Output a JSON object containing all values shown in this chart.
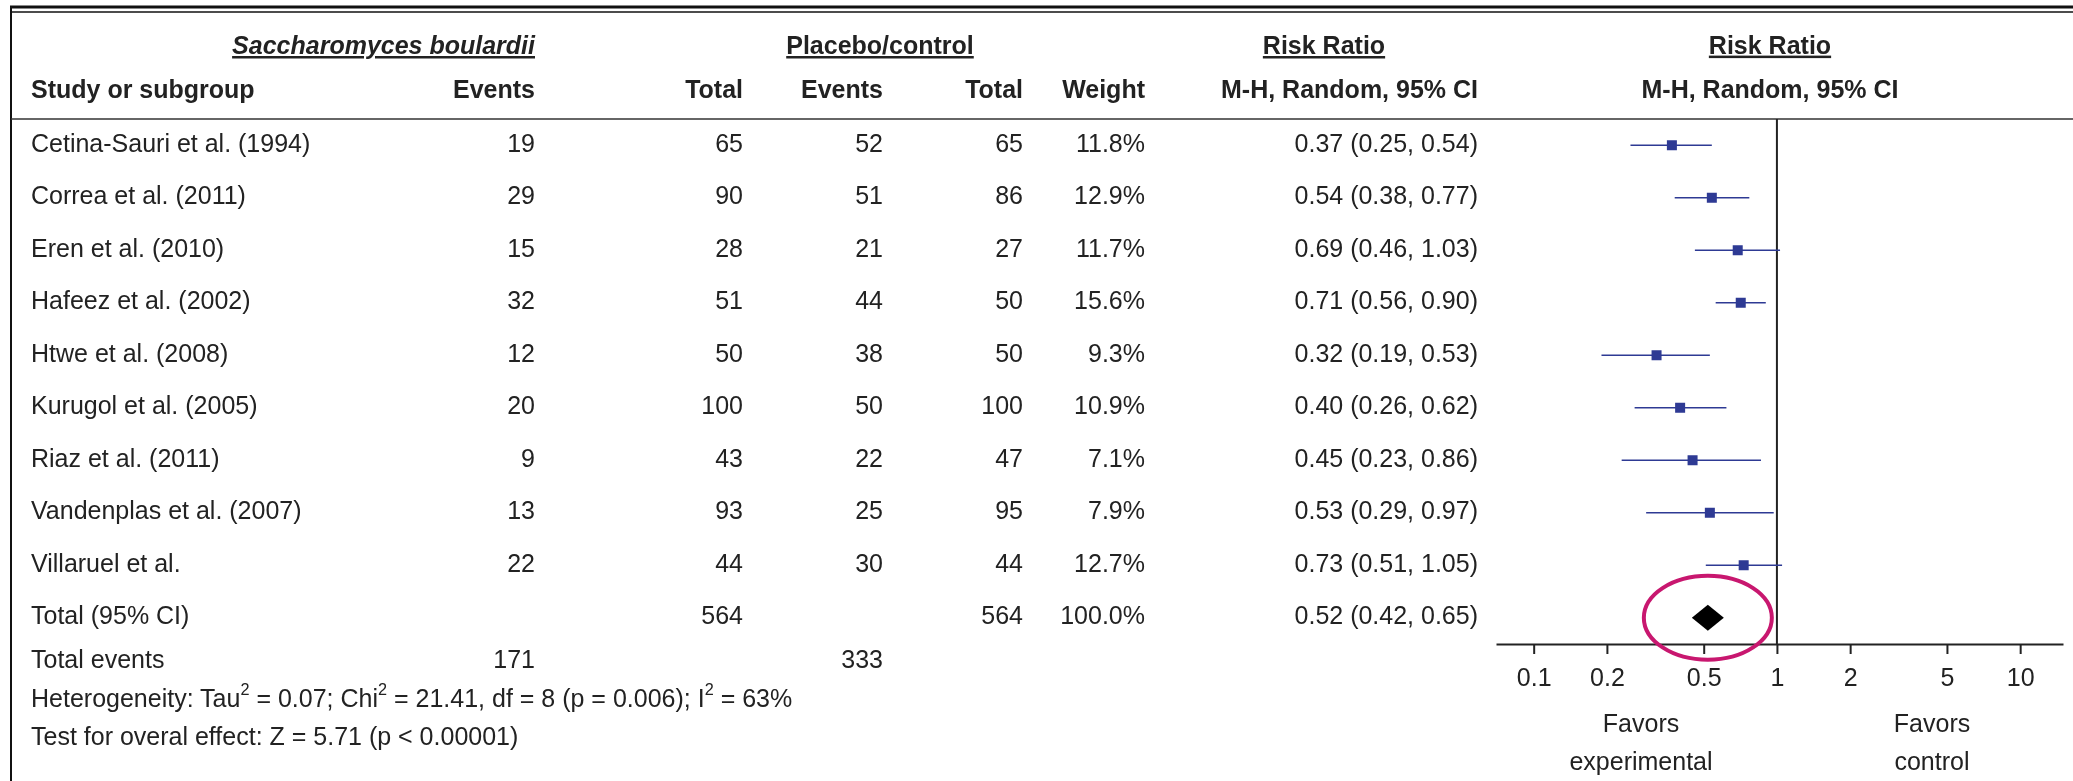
{
  "chart_data": [
    {
      "type": "other",
      "categories": [
        "Study or subgroup",
        "Events",
        "Total",
        "Events",
        "Total",
        "Weight",
        "M-H, Random, 95% CI"
      ],
      "cell_labels": [
        [
          "Cetina-Sauri et al. (1994)",
          "19",
          "65",
          "52",
          "65",
          "11.8%",
          "0.37 (0.25, 0.54)"
        ],
        [
          "Correa et al. (2011)",
          "29",
          "90",
          "51",
          "86",
          "12.9%",
          "0.54 (0.38, 0.77)"
        ],
        [
          "Eren et al. (2010)",
          "15",
          "28",
          "21",
          "27",
          "11.7%",
          "0.69 (0.46, 1.03)"
        ],
        [
          "Hafeez et al. (2002)",
          "32",
          "51",
          "44",
          "50",
          "15.6%",
          "0.71 (0.56, 0.90)"
        ],
        [
          "Htwe et al. (2008)",
          "12",
          "50",
          "38",
          "50",
          "9.3%",
          "0.32 (0.19, 0.53)"
        ],
        [
          "Kurugol et al. (2005)",
          "20",
          "100",
          "50",
          "100",
          "10.9%",
          "0.40 (0.26, 0.62)"
        ],
        [
          "Riaz et al. (2011)",
          "9",
          "43",
          "22",
          "47",
          "7.1%",
          "0.45 (0.23, 0.86)"
        ],
        [
          "Vandenplas et al. (2007)",
          "13",
          "93",
          "25",
          "95",
          "7.9%",
          "0.53 (0.29, 0.97)"
        ],
        [
          "Villaruel et al.",
          "22",
          "44",
          "30",
          "44",
          "12.7%",
          "0.73 (0.51, 1.05)"
        ],
        [
          "Total (95% CI)",
          null,
          "564",
          null,
          "564",
          "100.0%",
          "0.52 (0.42, 0.65)"
        ],
        [
          "Total events",
          "171",
          null,
          "333",
          null,
          null,
          null
        ]
      ],
      "annotations": [
        "Saccharomyces boulardii",
        "Placebo/control",
        "Risk Ratio",
        "Heterogeneity: Tau$^{2}$ = 0.07; Chi$^{2}$ = 21.41, df = 8 (p = 0.006); I$^{2}$ = 63%",
        "Test for overal effect: Z = 5.71 (p < 0.00001)"
      ]
    },
    {
      "type": "scatter",
      "title": "Risk Ratio",
      "subtitle": "M-H, Random, 95% CI",
      "orientation": "horizontal",
      "log": "x",
      "categories": [
        null,
        null,
        null,
        null,
        null,
        null,
        null,
        null,
        null,
        null
      ],
      "xlim": [
        0.07,
        15
      ],
      "xticks": [
        0.1,
        0.2,
        0.5,
        1,
        2,
        5,
        10
      ],
      "series": [
        {
          "color": "#2e3a94",
          "marker": "square",
          "values": [
            0.37,
            0.54,
            0.69,
            0.71,
            0.32,
            0.4,
            0.45,
            0.53,
            0.73,
            null
          ],
          "errors": [
            [
              0.25,
              0.54
            ],
            [
              0.38,
              0.77
            ],
            [
              0.46,
              1.03
            ],
            [
              0.56,
              0.9
            ],
            [
              0.19,
              0.53
            ],
            [
              0.26,
              0.62
            ],
            [
              0.23,
              0.86
            ],
            [
              0.29,
              0.97
            ],
            [
              0.51,
              1.05
            ],
            null
          ]
        },
        {
          "color": "#000000",
          "marker": "diamond",
          "values": [
            null,
            null,
            null,
            null,
            null,
            null,
            null,
            null,
            null,
            0.52
          ]
        }
      ],
      "ref_lines": [
        {
          "axis": "x",
          "value": 1
        }
      ],
      "annotations": [
        "Favors\nexperimental",
        "Favors\ncontrol"
      ]
    }
  ]
}
